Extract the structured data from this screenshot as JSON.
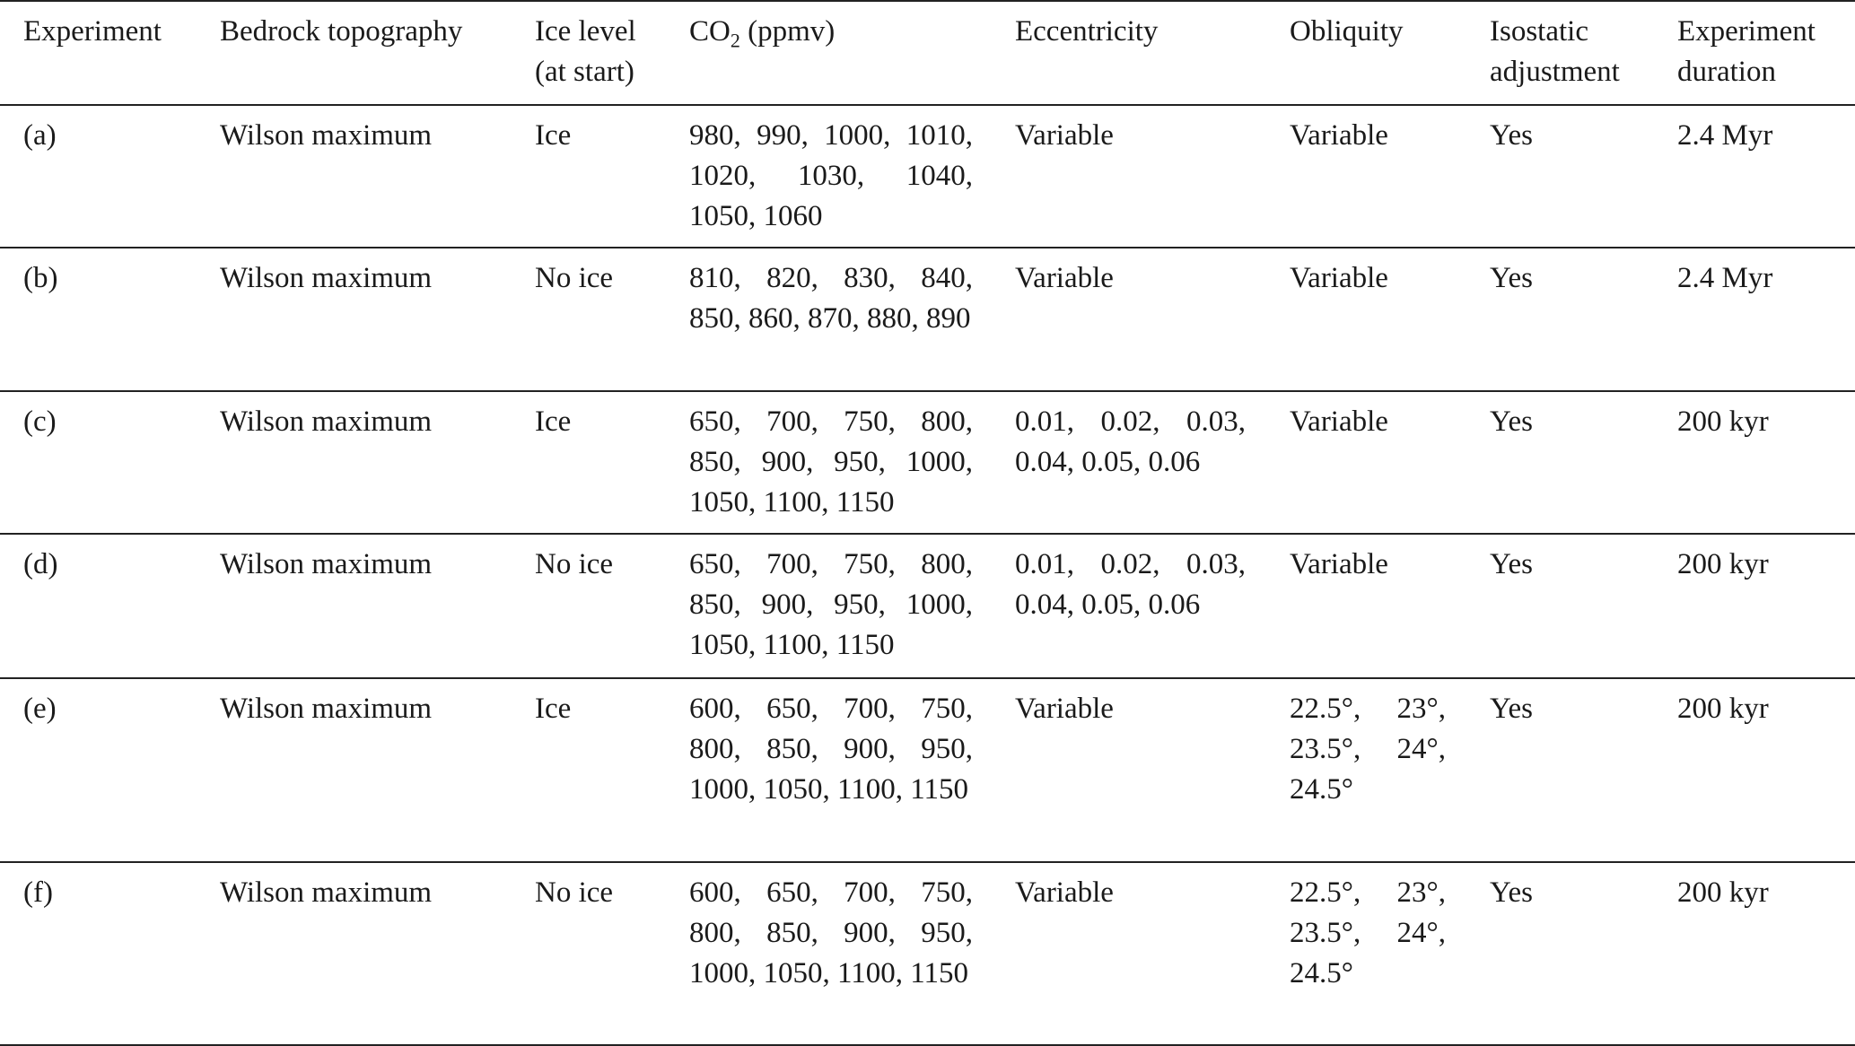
{
  "headers": {
    "experiment": "Experiment",
    "bedrock": "Bedrock topography",
    "ice_level": "Ice level (at start)",
    "co2_prefix": "CO",
    "co2_sub": "2",
    "co2_suffix": " (ppmv)",
    "eccentricity": "Eccentricity",
    "obliquity": "Obliquity",
    "isostatic": "Isostatic adjustment",
    "duration": "Experiment duration"
  },
  "rows": [
    {
      "experiment": "(a)",
      "bedrock": "Wilson maximum",
      "ice": "Ice",
      "co2": "980, 990, 1000, 1010, 1020, 1030, 1040, 1050, 1060",
      "eccentricity": "Variable",
      "obliquity": "Variable",
      "isostatic": "Yes",
      "duration": "2.4 Myr"
    },
    {
      "experiment": "(b)",
      "bedrock": "Wilson maximum",
      "ice": "No ice",
      "co2": "810, 820, 830, 840, 850, 860, 870, 880, 890",
      "eccentricity": "Variable",
      "obliquity": "Variable",
      "isostatic": "Yes",
      "duration": "2.4 Myr"
    },
    {
      "experiment": "(c)",
      "bedrock": "Wilson maximum",
      "ice": "Ice",
      "co2": "650, 700, 750, 800, 850, 900, 950, 1000, 1050, 1100, 1150",
      "eccentricity": "0.01, 0.02, 0.03, 0.04, 0.05, 0.06",
      "obliquity": "Variable",
      "isostatic": "Yes",
      "duration": "200 kyr"
    },
    {
      "experiment": "(d)",
      "bedrock": "Wilson maximum",
      "ice": "No ice",
      "co2": "650, 700, 750, 800, 850, 900, 950, 1000, 1050, 1100, 1150",
      "eccentricity": "0.01, 0.02, 0.03, 0.04, 0.05, 0.06",
      "obliquity": "Variable",
      "isostatic": "Yes",
      "duration": "200 kyr"
    },
    {
      "experiment": "(e)",
      "bedrock": "Wilson maximum",
      "ice": "Ice",
      "co2": "600, 650, 700, 750, 800, 850, 900, 950, 1000, 1050, 1100, 1150",
      "eccentricity": "Variable",
      "obliquity": "22.5°, 23°, 23.5°, 24°, 24.5°",
      "isostatic": "Yes",
      "duration": "200 kyr"
    },
    {
      "experiment": "(f)",
      "bedrock": "Wilson maximum",
      "ice": "No ice",
      "co2": "600, 650, 700, 750, 800, 850, 900, 950, 1000, 1050, 1100, 1150",
      "eccentricity": "Variable",
      "obliquity": "22.5°, 23°, 23.5°, 24°, 24.5°",
      "isostatic": "Yes",
      "duration": "200 kyr"
    }
  ]
}
